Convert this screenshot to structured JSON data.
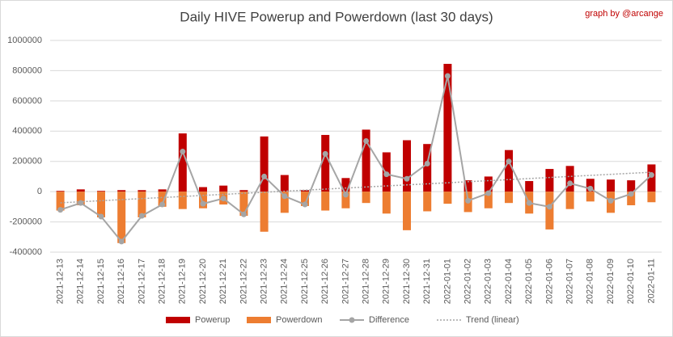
{
  "chart_data": {
    "type": "bar",
    "title": "Daily HIVE Powerup and Powerdown (last 30 days)",
    "annotation": "graph by @arcange",
    "categories": [
      "2021-12-13",
      "2021-12-14",
      "2021-12-15",
      "2021-12-16",
      "2021-12-17",
      "2021-12-18",
      "2021-12-19",
      "2021-12-20",
      "2021-12-21",
      "2021-12-22",
      "2021-12-23",
      "2021-12-24",
      "2021-12-25",
      "2021-12-26",
      "2021-12-27",
      "2021-12-28",
      "2021-12-29",
      "2021-12-30",
      "2021-12-31",
      "2022-01-01",
      "2022-01-02",
      "2022-01-03",
      "2022-01-04",
      "2022-01-05",
      "2022-01-06",
      "2022-01-07",
      "2022-01-08",
      "2022-01-09",
      "2022-01-10",
      "2022-01-11"
    ],
    "series": [
      {
        "name": "Powerup",
        "color": "#c00000",
        "kind": "bar",
        "values": [
          5000,
          15000,
          5000,
          10000,
          10000,
          15000,
          385000,
          30000,
          40000,
          10000,
          365000,
          110000,
          10000,
          375000,
          90000,
          410000,
          260000,
          340000,
          315000,
          845000,
          75000,
          100000,
          275000,
          70000,
          150000,
          170000,
          85000,
          80000,
          75000,
          180000
        ]
      },
      {
        "name": "Powerdown",
        "color": "#ed7d31",
        "kind": "bar",
        "values": [
          -125000,
          -90000,
          -170000,
          -340000,
          -170000,
          -100000,
          -115000,
          -110000,
          -85000,
          -160000,
          -265000,
          -140000,
          -95000,
          -125000,
          -110000,
          -75000,
          -145000,
          -255000,
          -130000,
          -80000,
          -135000,
          -110000,
          -75000,
          -145000,
          -250000,
          -115000,
          -65000,
          -140000,
          -90000,
          -70000
        ]
      },
      {
        "name": "Difference",
        "color": "#a5a5a5",
        "kind": "line",
        "values": [
          -120000,
          -75000,
          -165000,
          -330000,
          -160000,
          -85000,
          265000,
          -80000,
          -45000,
          -150000,
          100000,
          -30000,
          -85000,
          250000,
          -20000,
          335000,
          115000,
          85000,
          185000,
          765000,
          -60000,
          -10000,
          200000,
          -75000,
          -100000,
          55000,
          20000,
          -60000,
          -15000,
          110000
        ]
      }
    ],
    "trend": {
      "name": "Trend (linear)",
      "color": "#a5a5a5",
      "of": "Difference"
    },
    "ylim": [
      -400000,
      1000000
    ],
    "yticks": [
      -400000,
      -200000,
      0,
      200000,
      400000,
      600000,
      800000,
      1000000
    ],
    "grid": true
  }
}
